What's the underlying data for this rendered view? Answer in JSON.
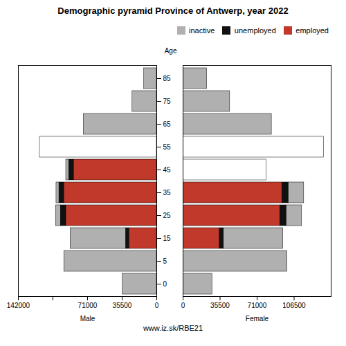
{
  "chart_data": [
    {
      "type": "bar",
      "orientation": "horizontal",
      "stacked": true,
      "title": "Demographic pyramid Province of Antwerp, year 2022",
      "xlabel": "Male",
      "ylabel": "Age",
      "categories": [
        0,
        5,
        15,
        25,
        35,
        45,
        55,
        65,
        75,
        85
      ],
      "series": [
        {
          "name": "inactive",
          "color": "#b0b0b0",
          "colors": [
            "#b0b0b0",
            "#b0b0b0",
            "#b0b0b0",
            "#b0b0b0",
            "#b0b0b0",
            "#b0b0b0",
            "#ffffff",
            "#b0b0b0",
            "#b0b0b0",
            "#b0b0b0"
          ],
          "values": [
            35000,
            95000,
            57000,
            5000,
            3000,
            3000,
            120000,
            75000,
            25000,
            13000
          ]
        },
        {
          "name": "unemployed",
          "color": "#111111",
          "values": [
            0,
            0,
            3500,
            5500,
            5000,
            5000,
            0,
            0,
            0,
            0
          ]
        },
        {
          "name": "employed",
          "color": "#c0392b",
          "values": [
            0,
            0,
            28000,
            93000,
            95000,
            85000,
            0,
            0,
            0,
            0
          ]
        }
      ],
      "xlim": [
        142000,
        0
      ],
      "xticks": [
        142000,
        {
          "value": 106500,
          "label": ""
        },
        71000,
        35500,
        0
      ],
      "grid": false,
      "tick_labels": true,
      "annotations": [
        "www.iz.sk/RBE21"
      ]
    },
    {
      "type": "bar",
      "orientation": "horizontal",
      "stacked": true,
      "xlabel": "Female",
      "categories": [
        0,
        5,
        15,
        25,
        35,
        45,
        55,
        65,
        75,
        85
      ],
      "series": [
        {
          "name": "inactive",
          "color": "#b0b0b0",
          "colors": [
            "#b0b0b0",
            "#b0b0b0",
            "#b0b0b0",
            "#b0b0b0",
            "#b0b0b0",
            "#ffffff",
            "#ffffff",
            "#b0b0b0",
            "#b0b0b0",
            "#b0b0b0"
          ],
          "values": [
            28000,
            100000,
            57000,
            15000,
            15000,
            80000,
            135000,
            85000,
            45000,
            23000
          ]
        },
        {
          "name": "unemployed",
          "color": "#111111",
          "values": [
            0,
            0,
            4000,
            6000,
            6000,
            0,
            0,
            0,
            0,
            0
          ]
        },
        {
          "name": "employed",
          "color": "#c0392b",
          "values": [
            0,
            0,
            35000,
            93000,
            95000,
            0,
            0,
            0,
            0,
            0
          ]
        }
      ],
      "xlim": [
        0,
        142000
      ],
      "xticks": [
        0,
        35500,
        71000,
        106500
      ],
      "grid": false,
      "tick_labels": "x",
      "legend": "upper right"
    }
  ]
}
